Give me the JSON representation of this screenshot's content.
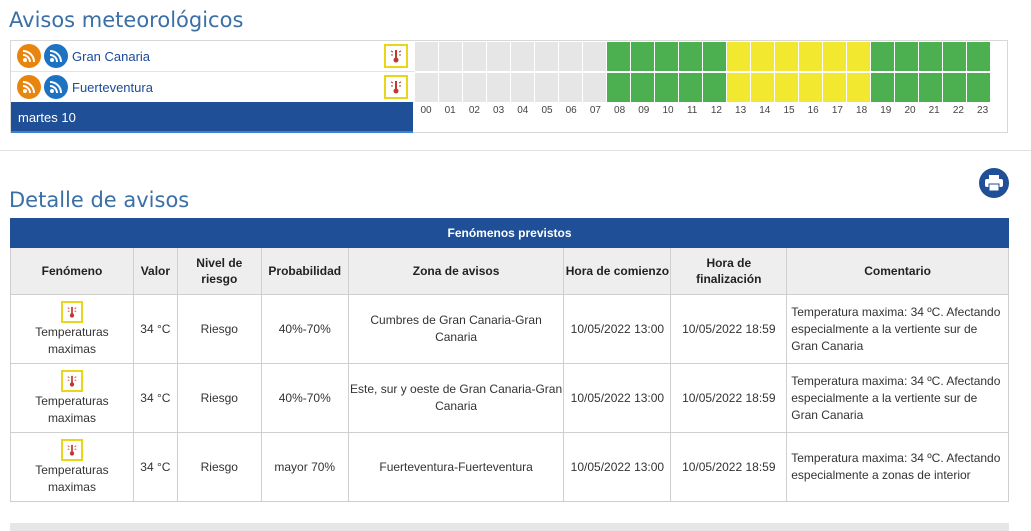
{
  "titles": {
    "avisos": "Avisos meteorológicos",
    "detalle": "Detalle de avisos"
  },
  "zones": [
    {
      "name": "Gran Canaria"
    },
    {
      "name": "Fuerteventura"
    }
  ],
  "day_label": "martes 10",
  "hours": [
    "00",
    "01",
    "02",
    "03",
    "04",
    "05",
    "06",
    "07",
    "08",
    "09",
    "10",
    "11",
    "12",
    "13",
    "14",
    "15",
    "16",
    "17",
    "18",
    "19",
    "20",
    "21",
    "22",
    "23"
  ],
  "hour_levels": [
    "none",
    "none",
    "none",
    "none",
    "none",
    "none",
    "none",
    "none",
    "green",
    "green",
    "green",
    "green",
    "green",
    "yellow",
    "yellow",
    "yellow",
    "yellow",
    "yellow",
    "yellow",
    "green",
    "green",
    "green",
    "green",
    "green"
  ],
  "colors": {
    "none": "#e6e6e6",
    "green": "#4caf50",
    "yellow": "#f2e830",
    "brand": "#1f4f96",
    "accent": "#3a6fa8"
  },
  "icons": {
    "rss": "rss-icon",
    "warning": "thermometer-warning-icon",
    "print": "print-icon"
  },
  "table": {
    "caption": "Fenómenos previstos",
    "headers": [
      "Fenómeno",
      "Valor",
      "Nivel de riesgo",
      "Probabilidad",
      "Zona de avisos",
      "Hora de comienzo",
      "Hora de finalización",
      "Comentario"
    ],
    "rows": [
      {
        "fenomeno": "Temperaturas maximas",
        "valor": "34 °C",
        "nivel": "Riesgo",
        "prob": "40%-70%",
        "zona": "Cumbres de Gran Canaria-Gran Canaria",
        "inicio": "10/05/2022 13:00",
        "fin": "10/05/2022 18:59",
        "comentario": "Temperatura maxima: 34 ºC. Afectando especialmente a la vertiente sur de Gran Canaria"
      },
      {
        "fenomeno": "Temperaturas maximas",
        "valor": "34 °C",
        "nivel": "Riesgo",
        "prob": "40%-70%",
        "zona": "Este, sur y oeste de Gran Canaria-Gran Canaria",
        "inicio": "10/05/2022 13:00",
        "fin": "10/05/2022 18:59",
        "comentario": "Temperatura maxima: 34 ºC. Afectando especialmente a la vertiente sur de Gran Canaria"
      },
      {
        "fenomeno": "Temperaturas maximas",
        "valor": "34 °C",
        "nivel": "Riesgo",
        "prob": "mayor 70%",
        "zona": "Fuerteventura-Fuerteventura",
        "inicio": "10/05/2022 13:00",
        "fin": "10/05/2022 18:59",
        "comentario": "Temperatura maxima: 34 ºC. Afectando especialmente a zonas de interior"
      }
    ]
  }
}
